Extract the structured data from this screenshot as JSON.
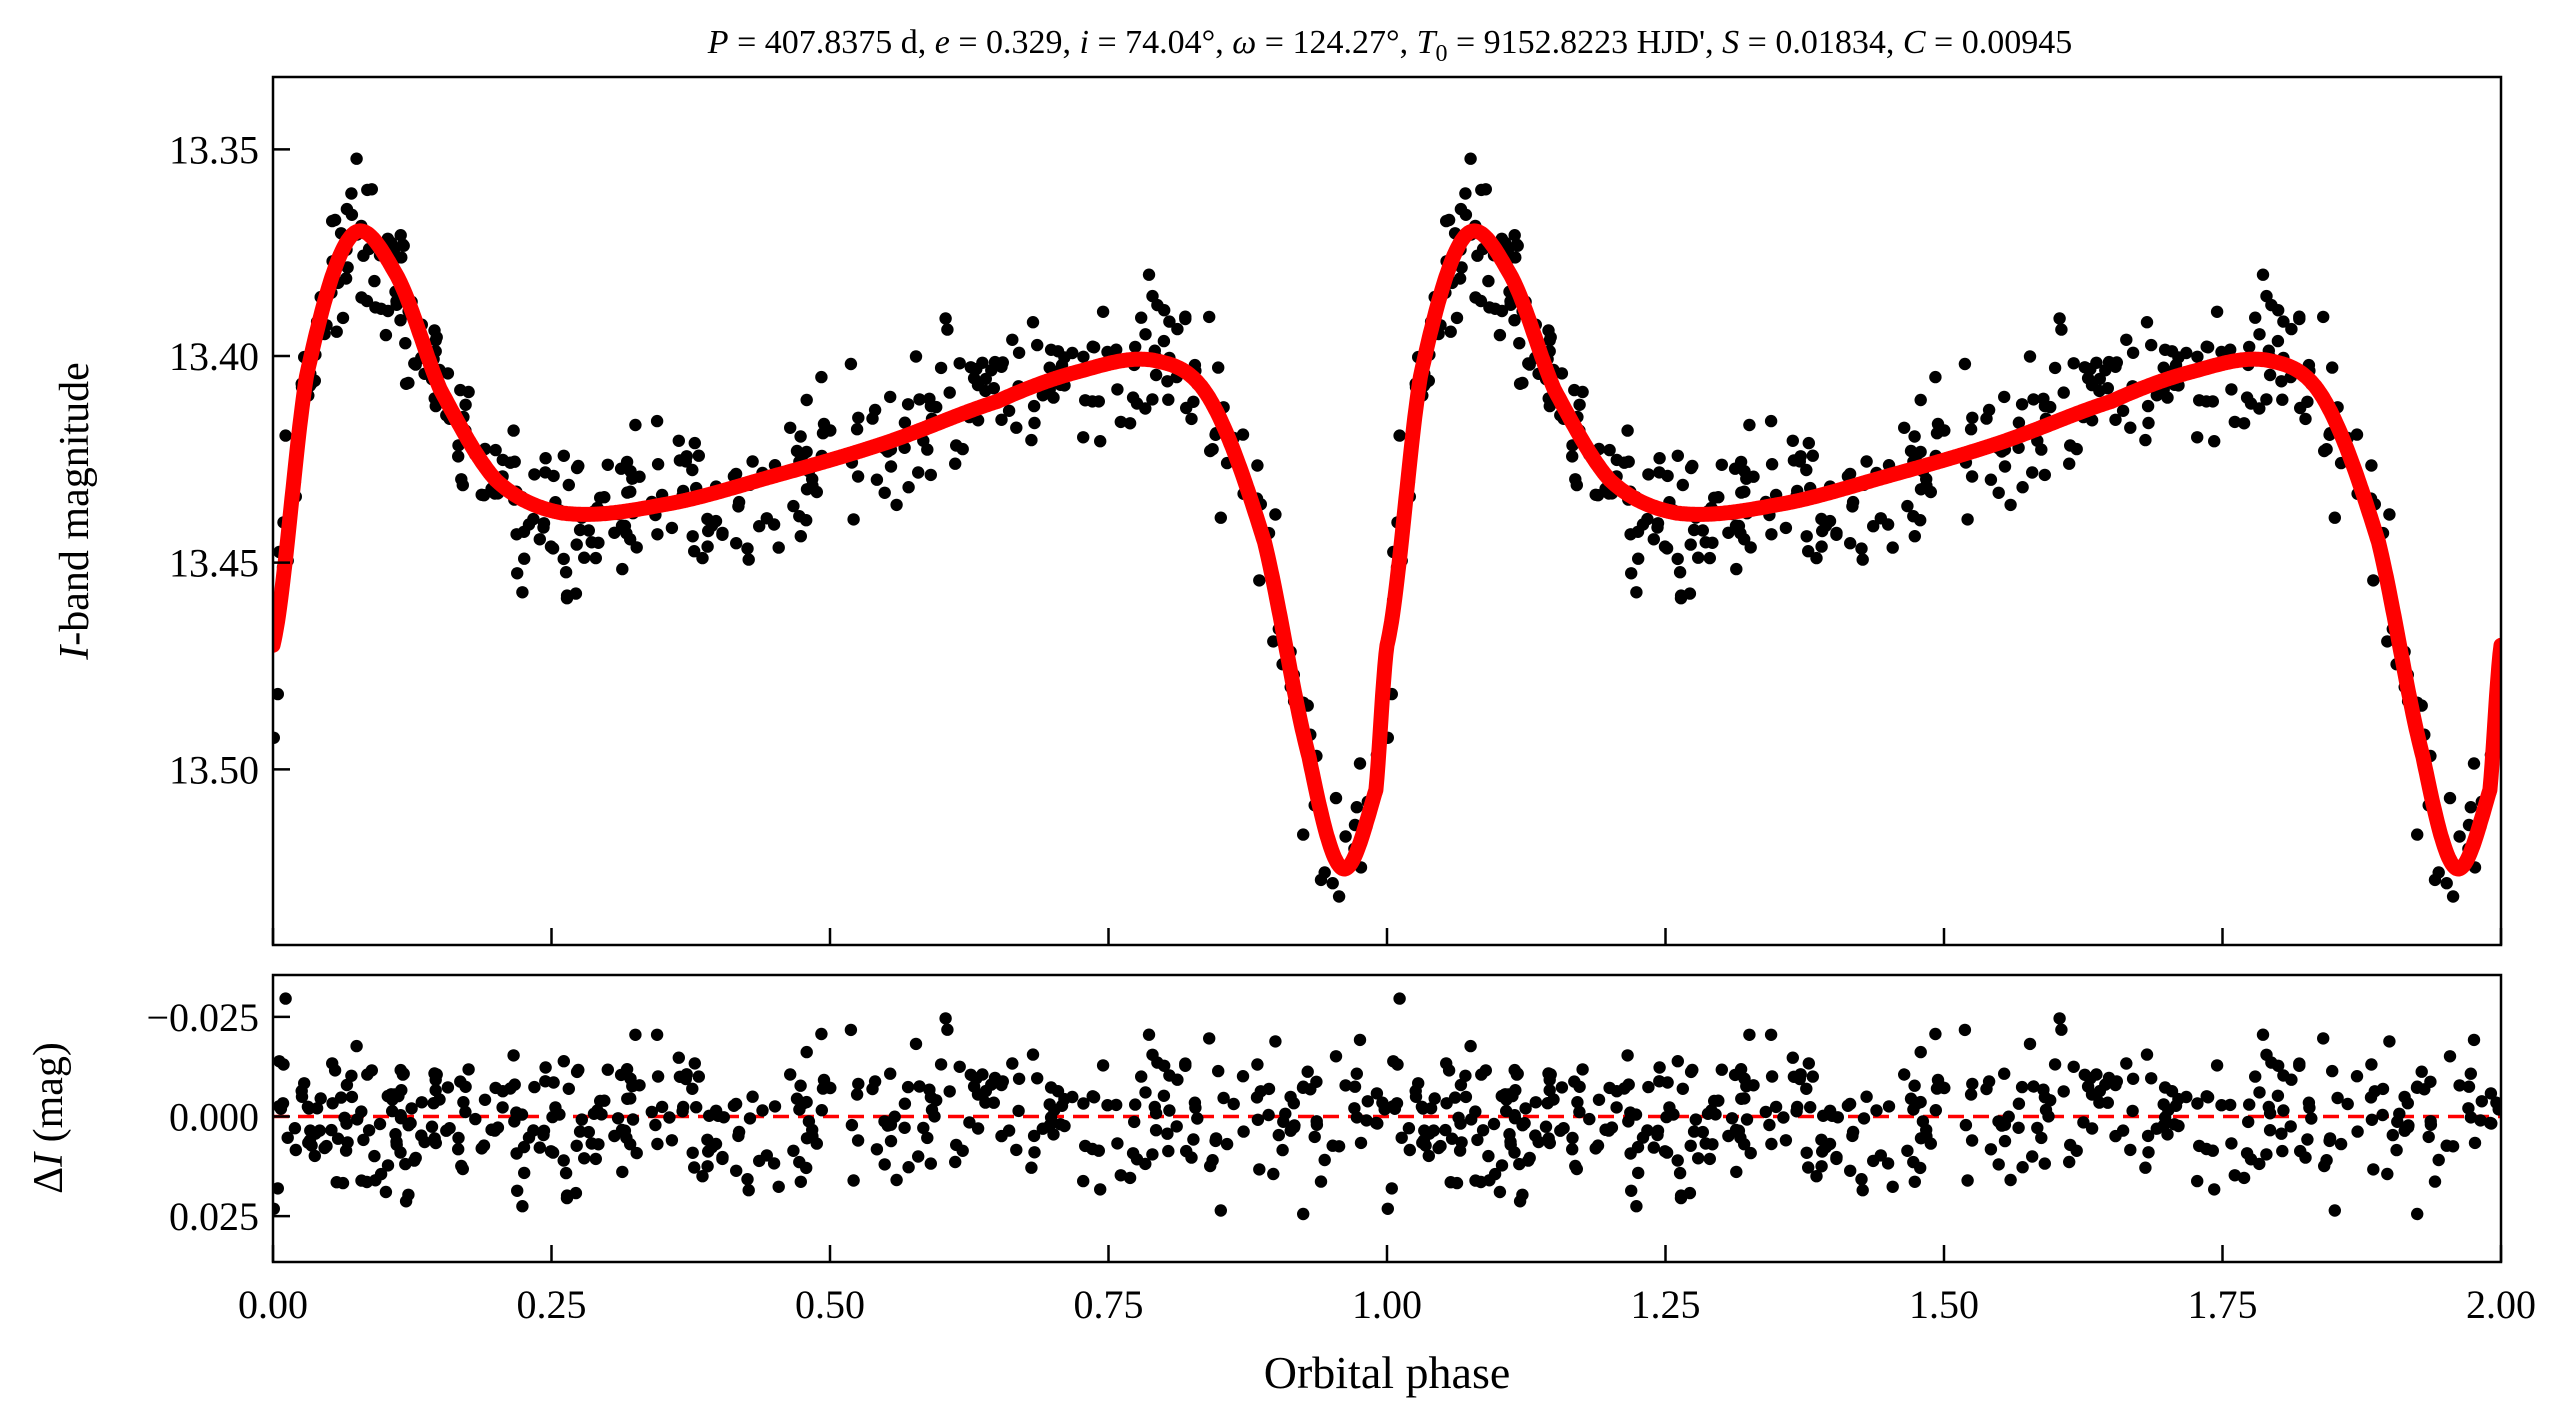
{
  "chart_data": {
    "title": {
      "P_sym": "P",
      "P_val": " = 407.8375 d, ",
      "e_sym": "e",
      "e_val": " = 0.329, ",
      "i_sym": "i",
      "i_val": " = 74.04°, ",
      "w_sym": "ω",
      "w_val": " = 124.27°, ",
      "T_sym": "T",
      "T_sub": "0",
      "T_val": " = 9152.8223 HJD', ",
      "S_sym": "S",
      "S_val": " = 0.01834, ",
      "C_sym": "C",
      "C_val": " = 0.00945"
    },
    "x_axis": {
      "label": "Orbital phase",
      "range": [
        0,
        2
      ],
      "ticks": [
        0,
        0.25,
        0.5,
        0.75,
        1.0,
        1.25,
        1.5,
        1.75,
        2.0
      ],
      "tick_labels": [
        "0.00",
        "0.25",
        "0.50",
        "0.75",
        "1.00",
        "1.25",
        "1.50",
        "1.75",
        "2.00"
      ]
    },
    "panels": [
      {
        "type": "scatter+line",
        "ylabel_italic": "I",
        "ylabel_rest": "-band magnitude",
        "y_inverted": true,
        "ylim": [
          13.5425,
          13.3325
        ],
        "yticks": [
          13.35,
          13.4,
          13.45,
          13.5
        ],
        "ytick_labels": [
          "13.35",
          "13.40",
          "13.45",
          "13.50"
        ],
        "series": [
          {
            "kind": "scatter",
            "color": "#000000",
            "description": "observed I-band magnitudes phased twice"
          },
          {
            "kind": "line",
            "color": "#ff0000",
            "model_knots": [
              [
                0.0,
                13.47
              ],
              [
                0.03,
                13.405
              ],
              [
                0.07,
                13.371
              ],
              [
                0.11,
                13.38
              ],
              [
                0.15,
                13.408
              ],
              [
                0.2,
                13.43
              ],
              [
                0.26,
                13.438
              ],
              [
                0.35,
                13.436
              ],
              [
                0.45,
                13.429
              ],
              [
                0.55,
                13.421
              ],
              [
                0.65,
                13.411
              ],
              [
                0.72,
                13.404
              ],
              [
                0.79,
                13.401
              ],
              [
                0.84,
                13.41
              ],
              [
                0.89,
                13.445
              ],
              [
                0.93,
                13.497
              ],
              [
                0.96,
                13.524
              ],
              [
                0.99,
                13.505
              ],
              [
                1.0,
                13.47
              ]
            ]
          }
        ]
      },
      {
        "type": "scatter",
        "ylabel_prefix": "Δ",
        "ylabel_italic": "I",
        "ylabel_rest": " (mag)",
        "y_inverted": true,
        "ylim": [
          0.0365,
          -0.0355
        ],
        "yticks": [
          -0.025,
          0.0,
          0.025
        ],
        "ytick_labels": [
          "−0.025",
          "0.000",
          "0.025"
        ],
        "reference_line": {
          "y": 0.0,
          "color": "#ff0000",
          "style": "dashed"
        }
      }
    ]
  }
}
